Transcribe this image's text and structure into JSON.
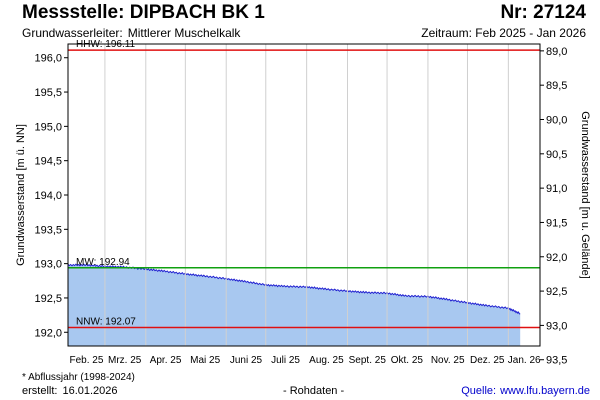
{
  "header": {
    "title": "Messstelle: DIPBACH BK 1",
    "number": "Nr: 27124",
    "aquifer_label": "Grundwasserleiter:",
    "aquifer_value": "Mittlerer Muschelkalk",
    "period": "Zeitraum: Feb 2025 - Jan 2026"
  },
  "footer": {
    "footnote": "* Abflussjahr (1998-2024)",
    "created_label": "erstellt:",
    "created_date": "16.01.2026",
    "raw_data": "- Rohdaten -",
    "source_label": "Quelle:",
    "source_url": "www.lfu.bayern.de"
  },
  "colors": {
    "fill": "#a8c8f0",
    "line": "#2020d0",
    "hhw": "#e01010",
    "nnw": "#e01010",
    "mw": "#10a010",
    "grid": "#d0d0d0"
  },
  "chart_data": {
    "type": "area",
    "ylabel": "Grundwasserstand [m ü. NN]",
    "y2label": "Grundwasserstand [m u. Gelände]",
    "ylim": [
      191.8,
      196.2
    ],
    "y_ticks": [
      "196,0",
      "195,5",
      "195,0",
      "194,5",
      "194,0",
      "193,5",
      "193,0",
      "192,5",
      "192,0"
    ],
    "y_tick_values": [
      196.0,
      195.5,
      195.0,
      194.5,
      194.0,
      193.5,
      193.0,
      192.5,
      192.0
    ],
    "y2_ticks": [
      "89,0",
      "89,5",
      "90,0",
      "90,5",
      "91,0",
      "91,5",
      "92,0",
      "92,5",
      "93,0",
      "93,5"
    ],
    "y2_tick_values": [
      196.1,
      195.6,
      195.1,
      194.6,
      194.1,
      193.6,
      193.1,
      192.6,
      192.1,
      191.6
    ],
    "x_ticks": [
      "Feb. 25",
      "Mrz. 25",
      "Apr. 25",
      "Mai 25",
      "Juni 25",
      "Juli 25",
      "Aug. 25",
      "Sept. 25",
      "Okt. 25",
      "Nov. 25",
      "Dez. 25",
      "Jan. 26"
    ],
    "grid": true,
    "reference_lines": [
      {
        "label": "HHW: 196.11",
        "value": 196.11,
        "color": "hhw"
      },
      {
        "label": "MW: 192.94",
        "value": 192.94,
        "color": "mw"
      },
      {
        "label": "NNW: 192.07",
        "value": 192.07,
        "color": "nnw"
      }
    ],
    "series": [
      {
        "x": [
          "2025-02-01",
          "2025-02-15",
          "2025-03-01",
          "2025-03-15",
          "2025-04-01",
          "2025-04-15",
          "2025-05-01",
          "2025-05-15",
          "2025-06-01",
          "2025-06-15",
          "2025-07-01",
          "2025-07-15",
          "2025-08-01",
          "2025-08-15",
          "2025-09-01",
          "2025-09-15",
          "2025-10-01",
          "2025-10-15",
          "2025-11-01",
          "2025-11-15",
          "2025-12-01",
          "2025-12-15",
          "2026-01-01",
          "2026-01-10"
        ],
        "values": [
          192.98,
          192.98,
          192.96,
          192.95,
          192.92,
          192.89,
          192.85,
          192.82,
          192.78,
          192.74,
          192.69,
          192.67,
          192.66,
          192.63,
          192.6,
          192.58,
          192.57,
          192.53,
          192.52,
          192.48,
          192.43,
          192.39,
          192.35,
          192.27
        ]
      }
    ]
  }
}
